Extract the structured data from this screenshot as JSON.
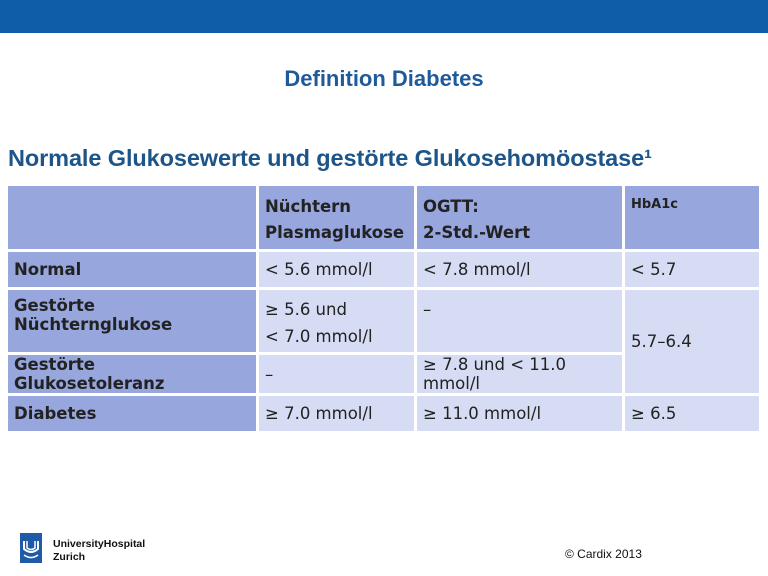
{
  "slide": {
    "title": "Definition Diabetes"
  },
  "table": {
    "heading": "Normale Glukosewerte und gestörte Glukosehomöostase¹",
    "header": {
      "col1_line1": "Nüchtern",
      "col1_line2": "Plasmaglukose",
      "col2_line1": "OGTT:",
      "col2_line2": "2-Std.-Wert",
      "col3": "HbA1c"
    },
    "rows": [
      {
        "label": "Normal",
        "fasting": "< 5.6 mmol/l",
        "ogtt": "< 7.8 mmol/l",
        "hba1c": "< 5.7"
      },
      {
        "label": "Gestörte Nüchternglukose",
        "fasting_line1": "≥ 5.6 und",
        "fasting_line2": "< 7.0 mmol/l",
        "ogtt": "–",
        "hba1c": "5.7–6.4"
      },
      {
        "label": "Gestörte Glukosetoleranz",
        "fasting": "–",
        "ogtt": "≥ 7.8 und < 11.0 mmol/l"
      },
      {
        "label": "Diabetes",
        "fasting": "≥ 7.0 mmol/l",
        "ogtt": "≥ 11.0 mmol/l",
        "hba1c": "≥ 6.5"
      }
    ]
  },
  "footer": {
    "logo_line1": "UniversityHospital",
    "logo_line2": "Zurich",
    "copyright": "© Cardix 2013"
  },
  "colors": {
    "top_bar": "#0f5da8",
    "header_cell": "#97a6dd",
    "value_cell": "#d6dcf4",
    "title": "#1f5a9a"
  }
}
